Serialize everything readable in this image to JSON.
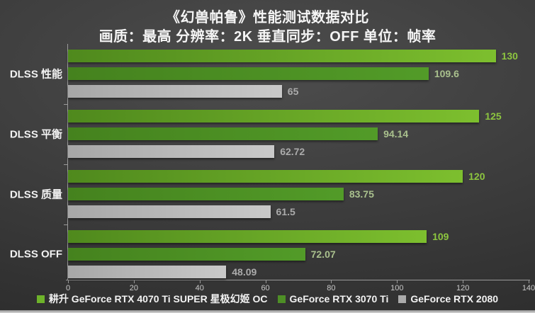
{
  "chart_data": {
    "type": "bar",
    "orientation": "horizontal",
    "title": "《幻兽帕鲁》性能测试数据对比",
    "subtitle": "画质：最高 分辨率：2K 垂直同步：OFF 单位：帧率",
    "categories": [
      "DLSS 性能",
      "DLSS 平衡",
      "DLSS 质量",
      "DLSS OFF"
    ],
    "series": [
      {
        "name": "耕升 GeForce RTX 4070 Ti SUPER 星极幻姬 OC",
        "values": [
          130,
          125,
          120,
          109
        ],
        "bar_color_start": "#4f891d",
        "bar_color_end": "#7dbf2e",
        "label_color": "#8dc63f",
        "swatch_color": "#6eb32a"
      },
      {
        "name": "GeForce RTX 3070 Ti",
        "values": [
          109.6,
          94.14,
          83.75,
          72.07
        ],
        "bar_color_start": "#45821e",
        "bar_color_end": "#529b28",
        "label_color": "#a9c08d",
        "swatch_color": "#4e8f26"
      },
      {
        "name": "GeForce RTX 2080",
        "values": [
          65,
          62.72,
          61.5,
          48.09
        ],
        "bar_color_start": "#a7a7a7",
        "bar_color_end": "#c9c9c9",
        "label_color": "#ababab",
        "swatch_color": "#ababab"
      }
    ],
    "xlim": [
      0,
      140
    ],
    "x_ticks": [
      0,
      20,
      40,
      60,
      80,
      100,
      120,
      140
    ],
    "grid": false,
    "legend_position": "bottom",
    "value_labels": true,
    "unit": "帧率"
  },
  "style": {
    "axis_color": "#9a9a9a",
    "tick_label_color": "#c9c9c9",
    "text_color": "#f2f2f2",
    "background_center": "#4d4d4d",
    "background_edge": "#2b2b2b"
  }
}
